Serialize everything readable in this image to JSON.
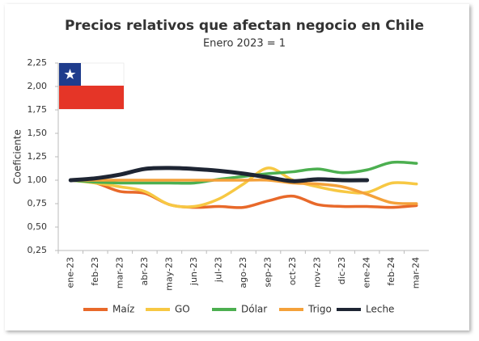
{
  "chart_data": {
    "type": "line",
    "title": "Precios relativos que afectan negocio en Chile",
    "subtitle": "Enero 2023 = 1",
    "y_label": "Coeficiente",
    "categories": [
      "ene-23",
      "feb-23",
      "mar-23",
      "abr-23",
      "may-23",
      "jun-23",
      "jul-23",
      "ago-23",
      "sep-23",
      "oct-23",
      "nov-23",
      "dic-23",
      "ene-24",
      "feb-24",
      "mar-24"
    ],
    "series": [
      {
        "name": "Maíz",
        "color": "#e8692a",
        "values": [
          1.0,
          0.97,
          0.88,
          0.86,
          0.74,
          0.71,
          0.72,
          0.71,
          0.78,
          0.83,
          0.74,
          0.72,
          0.72,
          0.71,
          0.73
        ]
      },
      {
        "name": "GO",
        "color": "#f7c843",
        "values": [
          1.0,
          0.97,
          0.93,
          0.88,
          0.74,
          0.72,
          0.8,
          0.96,
          1.13,
          1.0,
          0.93,
          0.88,
          0.87,
          0.97,
          0.96
        ]
      },
      {
        "name": "Dólar",
        "color": "#4caf50",
        "values": [
          1.0,
          0.98,
          0.97,
          0.97,
          0.97,
          0.97,
          1.01,
          1.04,
          1.07,
          1.09,
          1.12,
          1.08,
          1.11,
          1.19,
          1.18
        ]
      },
      {
        "name": "Trigo",
        "color": "#f4a13a",
        "values": [
          1.0,
          1.0,
          1.0,
          1.0,
          1.0,
          1.0,
          1.0,
          1.0,
          1.0,
          0.97,
          0.96,
          0.93,
          0.85,
          0.76,
          0.75
        ]
      },
      {
        "name": "Leche",
        "color": "#1e2533",
        "values": [
          1.0,
          1.02,
          1.06,
          1.12,
          1.13,
          1.12,
          1.1,
          1.07,
          1.03,
          0.99,
          1.01,
          1.0,
          1.0,
          null,
          null
        ]
      }
    ],
    "ylim": [
      0.25,
      2.25
    ],
    "yticks": [
      {
        "value": 0.25,
        "label": "0,25"
      },
      {
        "value": 0.5,
        "label": "0,50"
      },
      {
        "value": 0.75,
        "label": "0,75"
      },
      {
        "value": 1,
        "label": "1,00"
      },
      {
        "value": 1.25,
        "label": "1,25"
      },
      {
        "value": 1.5,
        "label": "1,50"
      },
      {
        "value": 1.75,
        "label": "1,75"
      },
      {
        "value": 2,
        "label": "2,00"
      },
      {
        "value": 2.25,
        "label": "2,25"
      }
    ],
    "grid": false,
    "legend": "bottom"
  }
}
